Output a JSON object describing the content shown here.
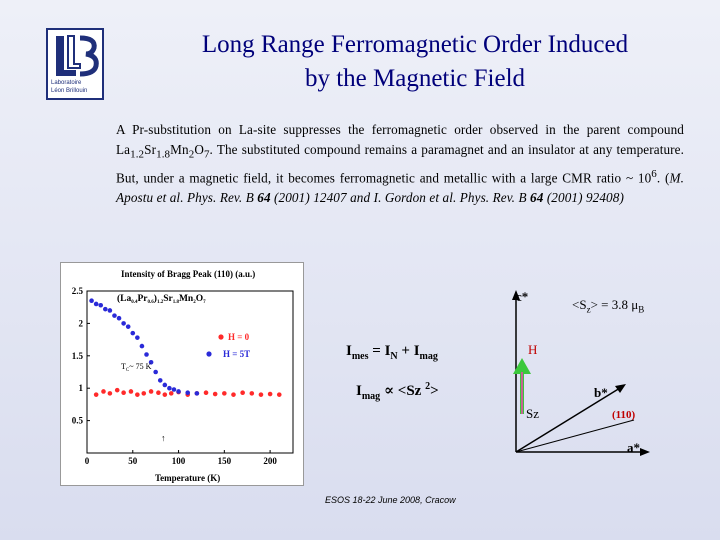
{
  "logo": {
    "letters": "LLB",
    "line1": "Laboratoire",
    "line2": "Léon Brillouin"
  },
  "title": {
    "line1": "Long Range Ferromagnetic Order Induced",
    "line2": "by the Magnetic Field"
  },
  "paragraph": {
    "p1": "A Pr-substitution on La-site  suppresses the ferromagnetic order observed in the parent compound La",
    "sub1": "1.2",
    "p2": "Sr",
    "sub2": "1.8",
    "p3": "Mn",
    "sub3": "2",
    "p4": "O",
    "sub4": "7",
    "p5": ". The substituted compound remains a paramagnet and an insulator at any temperature. But, under a magnetic field, it becomes ferromagnetic and metallic with a large CMR ratio  ~ 10",
    "sup1": "6",
    "p6": ". (",
    "ref1": "M. Apostu et al. Phys. Rev. B ",
    "ref1_vol": "64",
    "ref1_rest": " (2001) 12407",
    "ref2": "and I. Gordon et al. Phys. Rev. B ",
    "ref2_vol": "64",
    "ref2_rest": " (2001) 92408)"
  },
  "chart_data": {
    "type": "scatter",
    "title": "Intensity of Bragg Peak (110) (a.u.)",
    "xlabel": "Temperature (K)",
    "ylabel": "",
    "xlim": [
      0,
      225
    ],
    "ylim": [
      0,
      2.5
    ],
    "x_ticks": [
      "0",
      "50",
      "100",
      "150",
      "200"
    ],
    "y_ticks": [
      "0.5",
      "1",
      "1.5",
      "2",
      "2.5"
    ],
    "compound_label": "(La",
    "compound_label_rest": "Pr",
    "compound_label_end": ")",
    "compound_sub_a": "0.4",
    "compound_sub_b": "0.6",
    "compound_sub_c": "1.2",
    "compound_sr": "Sr",
    "compound_sub_d": "1.8",
    "compound_mn": "Mn",
    "compound_sub_e": "2",
    "compound_o": "O",
    "compound_sub_f": "7",
    "tc_label": "T",
    "tc_sub": "C",
    "tc_value": "~ 75 K",
    "series": [
      {
        "name": "H = 0",
        "color": "#ff2a2a",
        "x": [
          10,
          18,
          25,
          33,
          40,
          48,
          55,
          62,
          70,
          78,
          85,
          92,
          100,
          110,
          120,
          130,
          140,
          150,
          160,
          170,
          180,
          190,
          200,
          210
        ],
        "y": [
          0.9,
          0.95,
          0.92,
          0.97,
          0.93,
          0.95,
          0.9,
          0.92,
          0.95,
          0.93,
          0.9,
          0.92,
          0.94,
          0.9,
          0.92,
          0.93,
          0.91,
          0.92,
          0.9,
          0.93,
          0.92,
          0.9,
          0.91,
          0.9
        ]
      },
      {
        "name": "H = 5T",
        "color": "#2a2ad8",
        "x": [
          5,
          10,
          15,
          20,
          25,
          30,
          35,
          40,
          45,
          50,
          55,
          60,
          65,
          70,
          75,
          80,
          85,
          90,
          95,
          100,
          110,
          120
        ],
        "y": [
          2.35,
          2.3,
          2.28,
          2.22,
          2.2,
          2.12,
          2.08,
          2.0,
          1.95,
          1.85,
          1.78,
          1.65,
          1.52,
          1.4,
          1.25,
          1.12,
          1.05,
          1.0,
          0.98,
          0.95,
          0.93,
          0.92
        ]
      }
    ]
  },
  "equations": {
    "imes": "I",
    "imes_sub": "mes",
    "imes_rest": " = I",
    "n_sub": "N",
    "plus": " + I",
    "mag_sub": "mag",
    "imag": "I",
    "imag_sub": "mag",
    "prop": " ∝ <Sz ",
    "sq": "2",
    "close": ">"
  },
  "diagram": {
    "c_star": "c*",
    "sz_eq": "<S",
    "sz_sub": "z",
    "sz_rest": "> = 3.8 μ",
    "mu_sub": "B",
    "h": "H",
    "sz": "Sz",
    "b_star": "b*",
    "hkl": "(110)",
    "a_star": "a*",
    "colors": {
      "h_arrow": "#3cc83c",
      "sz_arrow": "#ff3ab8",
      "h_text": "#c00000",
      "hkl_text": "#c00000"
    }
  },
  "footer": "ESOS 18-22 June 2008, Cracow"
}
